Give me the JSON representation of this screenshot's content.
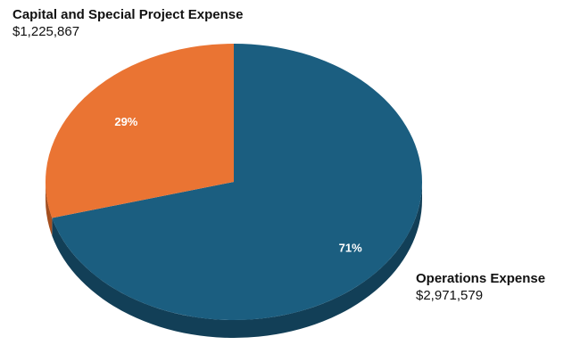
{
  "chart_data": {
    "type": "pie",
    "style": "3d",
    "slices": [
      {
        "name": "Operations Expense",
        "amount": "$2,971,579",
        "value": 2971579,
        "percent_label": "71%",
        "color": "#1b5e80",
        "side_color": "#123f57"
      },
      {
        "name": "Capital and Special Project Expense",
        "amount": "$1,225,867",
        "value": 1225867,
        "percent_label": "29%",
        "color": "#ea7433",
        "side_color": "#a44f20"
      }
    ]
  }
}
